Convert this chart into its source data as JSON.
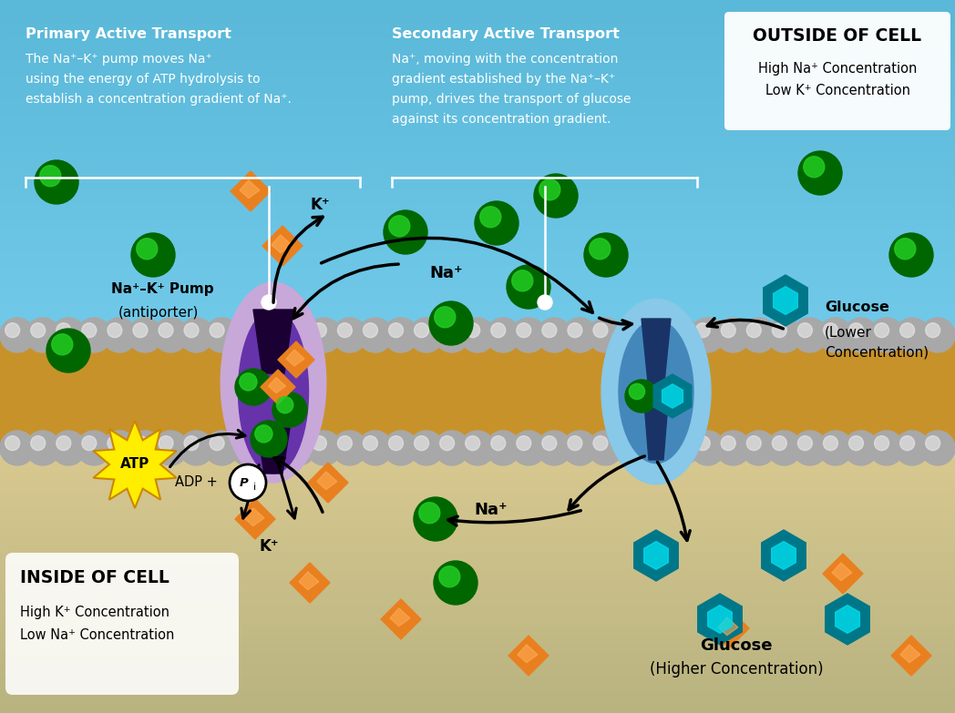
{
  "bg_outside": "#5ab8d8",
  "bg_inside": "#c8b882",
  "bg_inside_dark": "#b8a870",
  "membrane_gold": "#c8922a",
  "membrane_sphere_dark": "#a8a8a8",
  "membrane_sphere_light": "#e8e8e8",
  "purple_light": "#c8a8d8",
  "purple_dark": "#6633aa",
  "purple_channel": "#1a0033",
  "blue_sglt": "#88c8e8",
  "blue_sglt_mid": "#4488bb",
  "blue_sglt_dark": "#1a3366",
  "green_ball": "#22cc22",
  "green_dark": "#006600",
  "orange_diamond": "#e88020",
  "orange_dark": "#995500",
  "cyan_hex": "#00ddee",
  "cyan_dark": "#007788",
  "yellow_star": "#ffee00",
  "yellow_dark": "#cc8800",
  "white": "#ffffff",
  "black": "#000000",
  "primary_title": "Primary Active Transport",
  "primary_line1": "The Na⁺–K⁺ pump moves Na⁺",
  "primary_line2": "using the energy of ATP hydrolysis to",
  "primary_line3": "establish a concentration gradient of Na⁺.",
  "secondary_title": "Secondary Active Transport",
  "secondary_line1": "Na⁺, moving with the concentration",
  "secondary_line2": "gradient established by the Na⁺–K⁺",
  "secondary_line3": "pump, drives the transport of glucose",
  "secondary_line4": "against its concentration gradient.",
  "outside_title": "OUTSIDE OF CELL",
  "outside_line1": "High Na⁺ Concentration",
  "outside_line2": "Low K⁺ Concentration",
  "inside_title": "INSIDE OF CELL",
  "inside_line1": "High K⁺ Concentration",
  "inside_line2": "Low Na⁺ Concentration",
  "pump_label_line1": "Na⁺–K⁺ Pump",
  "pump_label_line2": "(antiporter)",
  "atp_text": "ATP",
  "adp_text": "ADP + ",
  "pi_text": "P",
  "na_text": "Na⁺",
  "k_text": "K⁺",
  "glucose_lower": "Glucose",
  "glucose_lower2": "(Lower",
  "glucose_lower3": "Concentration)",
  "glucose_higher": "Glucose",
  "glucose_higher2": "(Higher Concentration)"
}
